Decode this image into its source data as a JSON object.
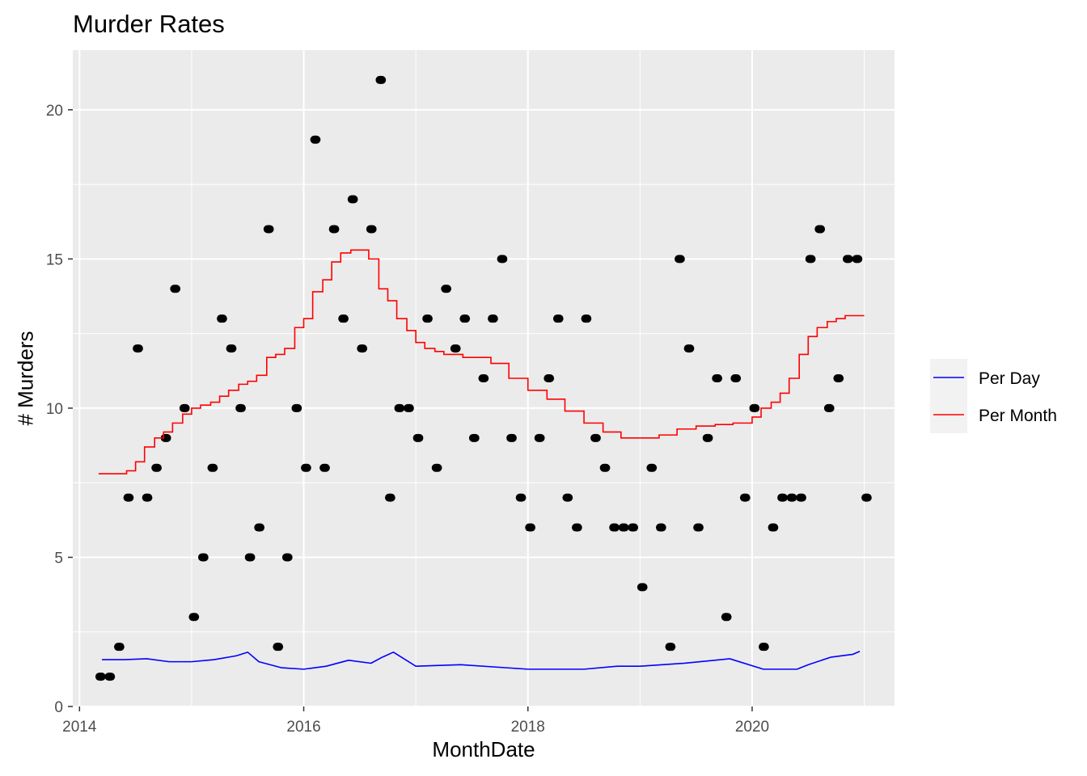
{
  "chart_data": {
    "type": "line",
    "title": "Murder Rates",
    "xlabel": "MonthDate",
    "ylabel": "# Murders",
    "xlim": [
      2013.94,
      2021.27
    ],
    "ylim": [
      0,
      22
    ],
    "x_ticks": [
      2014,
      2016,
      2018,
      2020
    ],
    "x_tick_labels": [
      "2014",
      "2016",
      "2018",
      "2020"
    ],
    "y_ticks": [
      0,
      5,
      10,
      15,
      20
    ],
    "y_tick_labels": [
      "0",
      "5",
      "10",
      "15",
      "20"
    ],
    "grid": true,
    "legend": {
      "placement": "right",
      "entries": [
        "Per Day",
        "Per Month"
      ]
    },
    "colors": {
      "per_day": "#0000ff",
      "per_month": "#ff0000",
      "points": "#000000",
      "panel": "#ebebeb",
      "grid": "#ffffff"
    },
    "monthly_points": {
      "start_year": 2014,
      "start_month": 3,
      "values": [
        1,
        1,
        2,
        7,
        12,
        7,
        8,
        9,
        14,
        10,
        3,
        5,
        8,
        13,
        12,
        10,
        5,
        6,
        16,
        2,
        5,
        10,
        8,
        19,
        8,
        16,
        13,
        17,
        12,
        16,
        21,
        7,
        10,
        10,
        9,
        13,
        8,
        14,
        12,
        13,
        9,
        11,
        13,
        15,
        9,
        7,
        6,
        9,
        11,
        13,
        7,
        6,
        13,
        9,
        8,
        6,
        6,
        6,
        4,
        8,
        6,
        2,
        15,
        12,
        6,
        9,
        11,
        3,
        11,
        7,
        10,
        2,
        6,
        7,
        7,
        7,
        15,
        16,
        10,
        11,
        15,
        15,
        7
      ]
    },
    "series": [
      {
        "name": "Per Month",
        "x": [
          2014.17,
          2014.42,
          2014.5,
          2014.58,
          2014.67,
          2014.75,
          2014.83,
          2014.92,
          2015.0,
          2015.08,
          2015.17,
          2015.25,
          2015.33,
          2015.42,
          2015.5,
          2015.58,
          2015.67,
          2015.75,
          2015.83,
          2015.92,
          2016.0,
          2016.08,
          2016.17,
          2016.25,
          2016.33,
          2016.42,
          2016.5,
          2016.58,
          2016.67,
          2016.75,
          2016.83,
          2016.92,
          2017.0,
          2017.08,
          2017.17,
          2017.25,
          2017.42,
          2017.67,
          2017.83,
          2018.0,
          2018.17,
          2018.33,
          2018.5,
          2018.67,
          2018.83,
          2019.0,
          2019.17,
          2019.33,
          2019.5,
          2019.67,
          2019.83,
          2020.0,
          2020.08,
          2020.17,
          2020.25,
          2020.33,
          2020.42,
          2020.5,
          2020.58,
          2020.67,
          2020.75,
          2020.83,
          2020.92
        ],
        "values": [
          7.8,
          7.9,
          8.2,
          8.7,
          9.0,
          9.2,
          9.5,
          9.8,
          10.0,
          10.1,
          10.2,
          10.4,
          10.6,
          10.8,
          10.9,
          11.1,
          11.7,
          11.8,
          12.0,
          12.7,
          13.0,
          13.9,
          14.3,
          14.9,
          15.2,
          15.3,
          15.3,
          15.0,
          14.0,
          13.6,
          13.0,
          12.6,
          12.2,
          12.0,
          11.9,
          11.8,
          11.7,
          11.5,
          11.0,
          10.6,
          10.3,
          9.9,
          9.5,
          9.2,
          9.0,
          9.0,
          9.1,
          9.3,
          9.4,
          9.45,
          9.5,
          9.7,
          10.0,
          10.2,
          10.5,
          11.0,
          11.8,
          12.4,
          12.7,
          12.9,
          13.0,
          13.1,
          13.1
        ]
      },
      {
        "name": "Per Day",
        "x": [
          2014.2,
          2014.4,
          2014.6,
          2014.8,
          2015.0,
          2015.2,
          2015.4,
          2015.5,
          2015.6,
          2015.8,
          2016.0,
          2016.2,
          2016.4,
          2016.6,
          2016.7,
          2016.8,
          2017.0,
          2017.4,
          2018.0,
          2018.5,
          2018.8,
          2019.0,
          2019.4,
          2019.8,
          2020.1,
          2020.4,
          2020.5,
          2020.7,
          2020.9,
          2020.96
        ],
        "values": [
          1.57,
          1.57,
          1.6,
          1.5,
          1.5,
          1.57,
          1.7,
          1.82,
          1.5,
          1.3,
          1.25,
          1.35,
          1.55,
          1.45,
          1.65,
          1.82,
          1.35,
          1.4,
          1.25,
          1.25,
          1.35,
          1.35,
          1.45,
          1.6,
          1.25,
          1.25,
          1.4,
          1.65,
          1.75,
          1.85
        ]
      }
    ]
  }
}
